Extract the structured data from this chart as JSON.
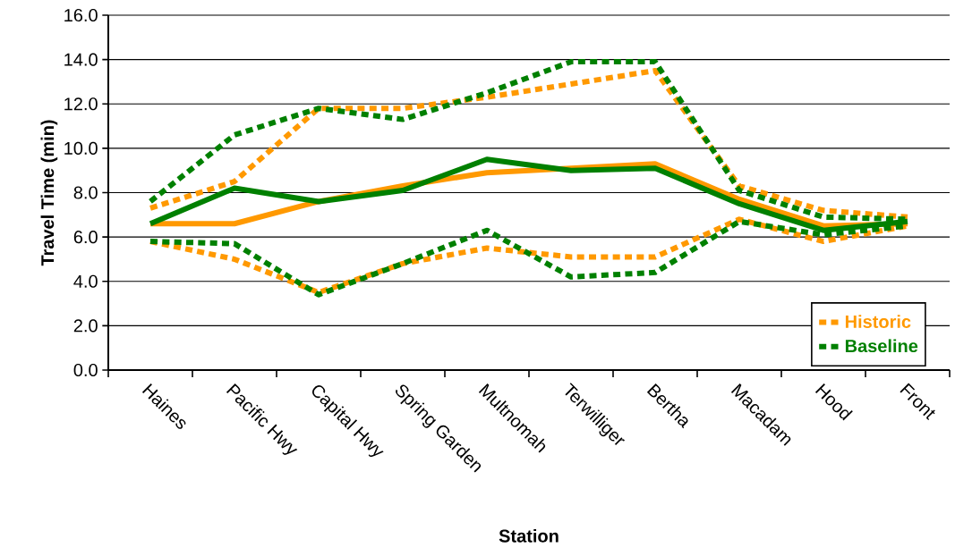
{
  "chart_data": {
    "type": "line",
    "xlabel": "Station",
    "ylabel": "Travel Time (min)",
    "categories": [
      "Haines",
      "Pacific Hwy",
      "Capital Hwy",
      "Spring Garden",
      "Multnomah",
      "Terwilliger",
      "Bertha",
      "Macadam",
      "Hood",
      "Front"
    ],
    "ylim": [
      0,
      16
    ],
    "yticks": [
      {
        "value": 0,
        "label": "0.0"
      },
      {
        "value": 2,
        "label": "2.0"
      },
      {
        "value": 4,
        "label": "4.0"
      },
      {
        "value": 6,
        "label": "6.0"
      },
      {
        "value": 8,
        "label": "8.0"
      },
      {
        "value": 10,
        "label": "10.0"
      },
      {
        "value": 12,
        "label": "12.0"
      },
      {
        "value": 14,
        "label": "14.0"
      },
      {
        "value": 16,
        "label": "16.0"
      }
    ],
    "grid": "y",
    "legend": "bottom right",
    "series": [
      {
        "name": "Historic",
        "color": "#ff9900",
        "line_style": "dashed",
        "values": [
          7.3,
          8.5,
          11.8,
          11.8,
          12.3,
          12.9,
          13.5,
          8.3,
          7.2,
          6.9
        ]
      },
      {
        "color": "#ff9900",
        "line_style": "dashed",
        "values": [
          5.8,
          5.0,
          3.5,
          4.8,
          5.5,
          5.1,
          5.1,
          6.8,
          5.8,
          6.5
        ]
      },
      {
        "color": "#ff9900",
        "line_style": "solid",
        "values": [
          6.6,
          6.6,
          7.6,
          8.3,
          8.9,
          9.1,
          9.3,
          7.7,
          6.5,
          6.6
        ]
      },
      {
        "name": "Baseline",
        "color": "#008000",
        "line_style": "dashed",
        "values": [
          7.6,
          10.6,
          11.8,
          11.3,
          12.5,
          13.9,
          13.9,
          8.1,
          6.9,
          6.8
        ]
      },
      {
        "color": "#008000",
        "line_style": "dashed",
        "values": [
          5.8,
          5.7,
          3.4,
          4.8,
          6.3,
          4.2,
          4.4,
          6.7,
          6.1,
          6.5
        ]
      },
      {
        "color": "#008000",
        "line_style": "solid",
        "values": [
          6.6,
          8.2,
          7.6,
          8.1,
          9.5,
          9.0,
          9.1,
          7.5,
          6.3,
          6.7
        ]
      }
    ]
  }
}
